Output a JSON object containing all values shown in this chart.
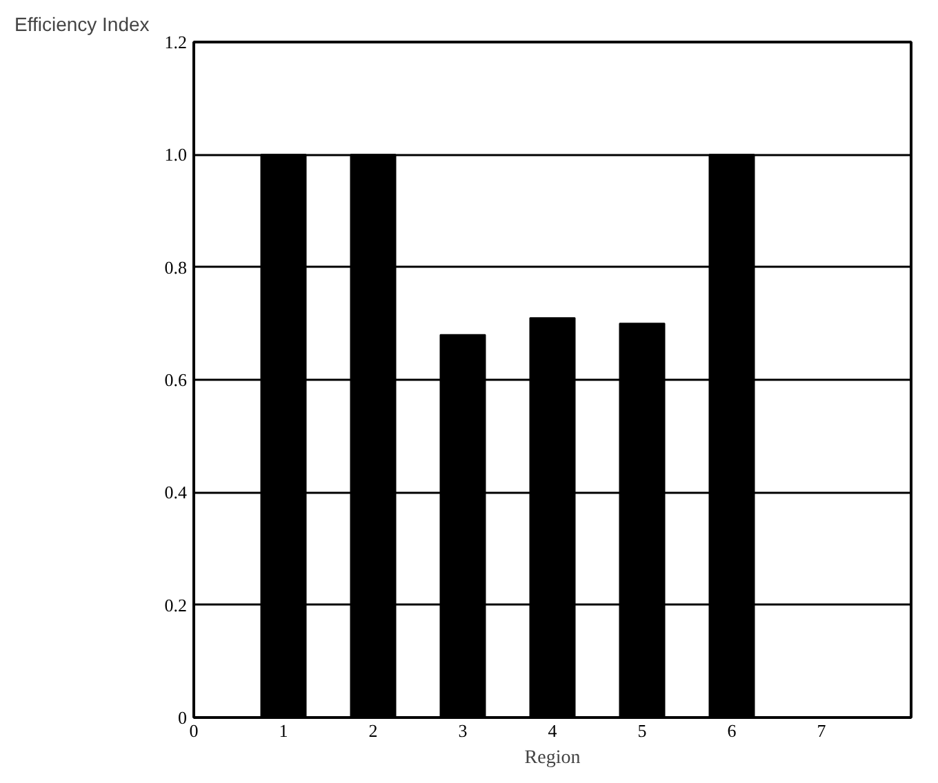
{
  "chart_data": {
    "type": "bar",
    "xlabel": "Region",
    "ylabel": "Efficiency Index",
    "x": [
      1,
      2,
      3,
      4,
      5,
      6
    ],
    "values": [
      1.0,
      1.0,
      0.68,
      0.71,
      0.7,
      1.0
    ],
    "color": "#000000",
    "xlim": [
      0,
      8
    ],
    "xticks": [
      0,
      1,
      2,
      3,
      4,
      5,
      6,
      7
    ],
    "ylim": [
      0,
      1.2
    ],
    "yticks": [
      0,
      {
        "value": 0.2,
        "label": "0.2"
      },
      {
        "value": 0.4,
        "label": "0.4"
      },
      {
        "value": 0.6,
        "label": "0.6"
      },
      {
        "value": 0.8,
        "label": "0.8"
      },
      {
        "value": 1.0,
        "label": "1.0"
      },
      {
        "value": 1.2,
        "label": "1.2"
      }
    ],
    "grid": "y"
  }
}
